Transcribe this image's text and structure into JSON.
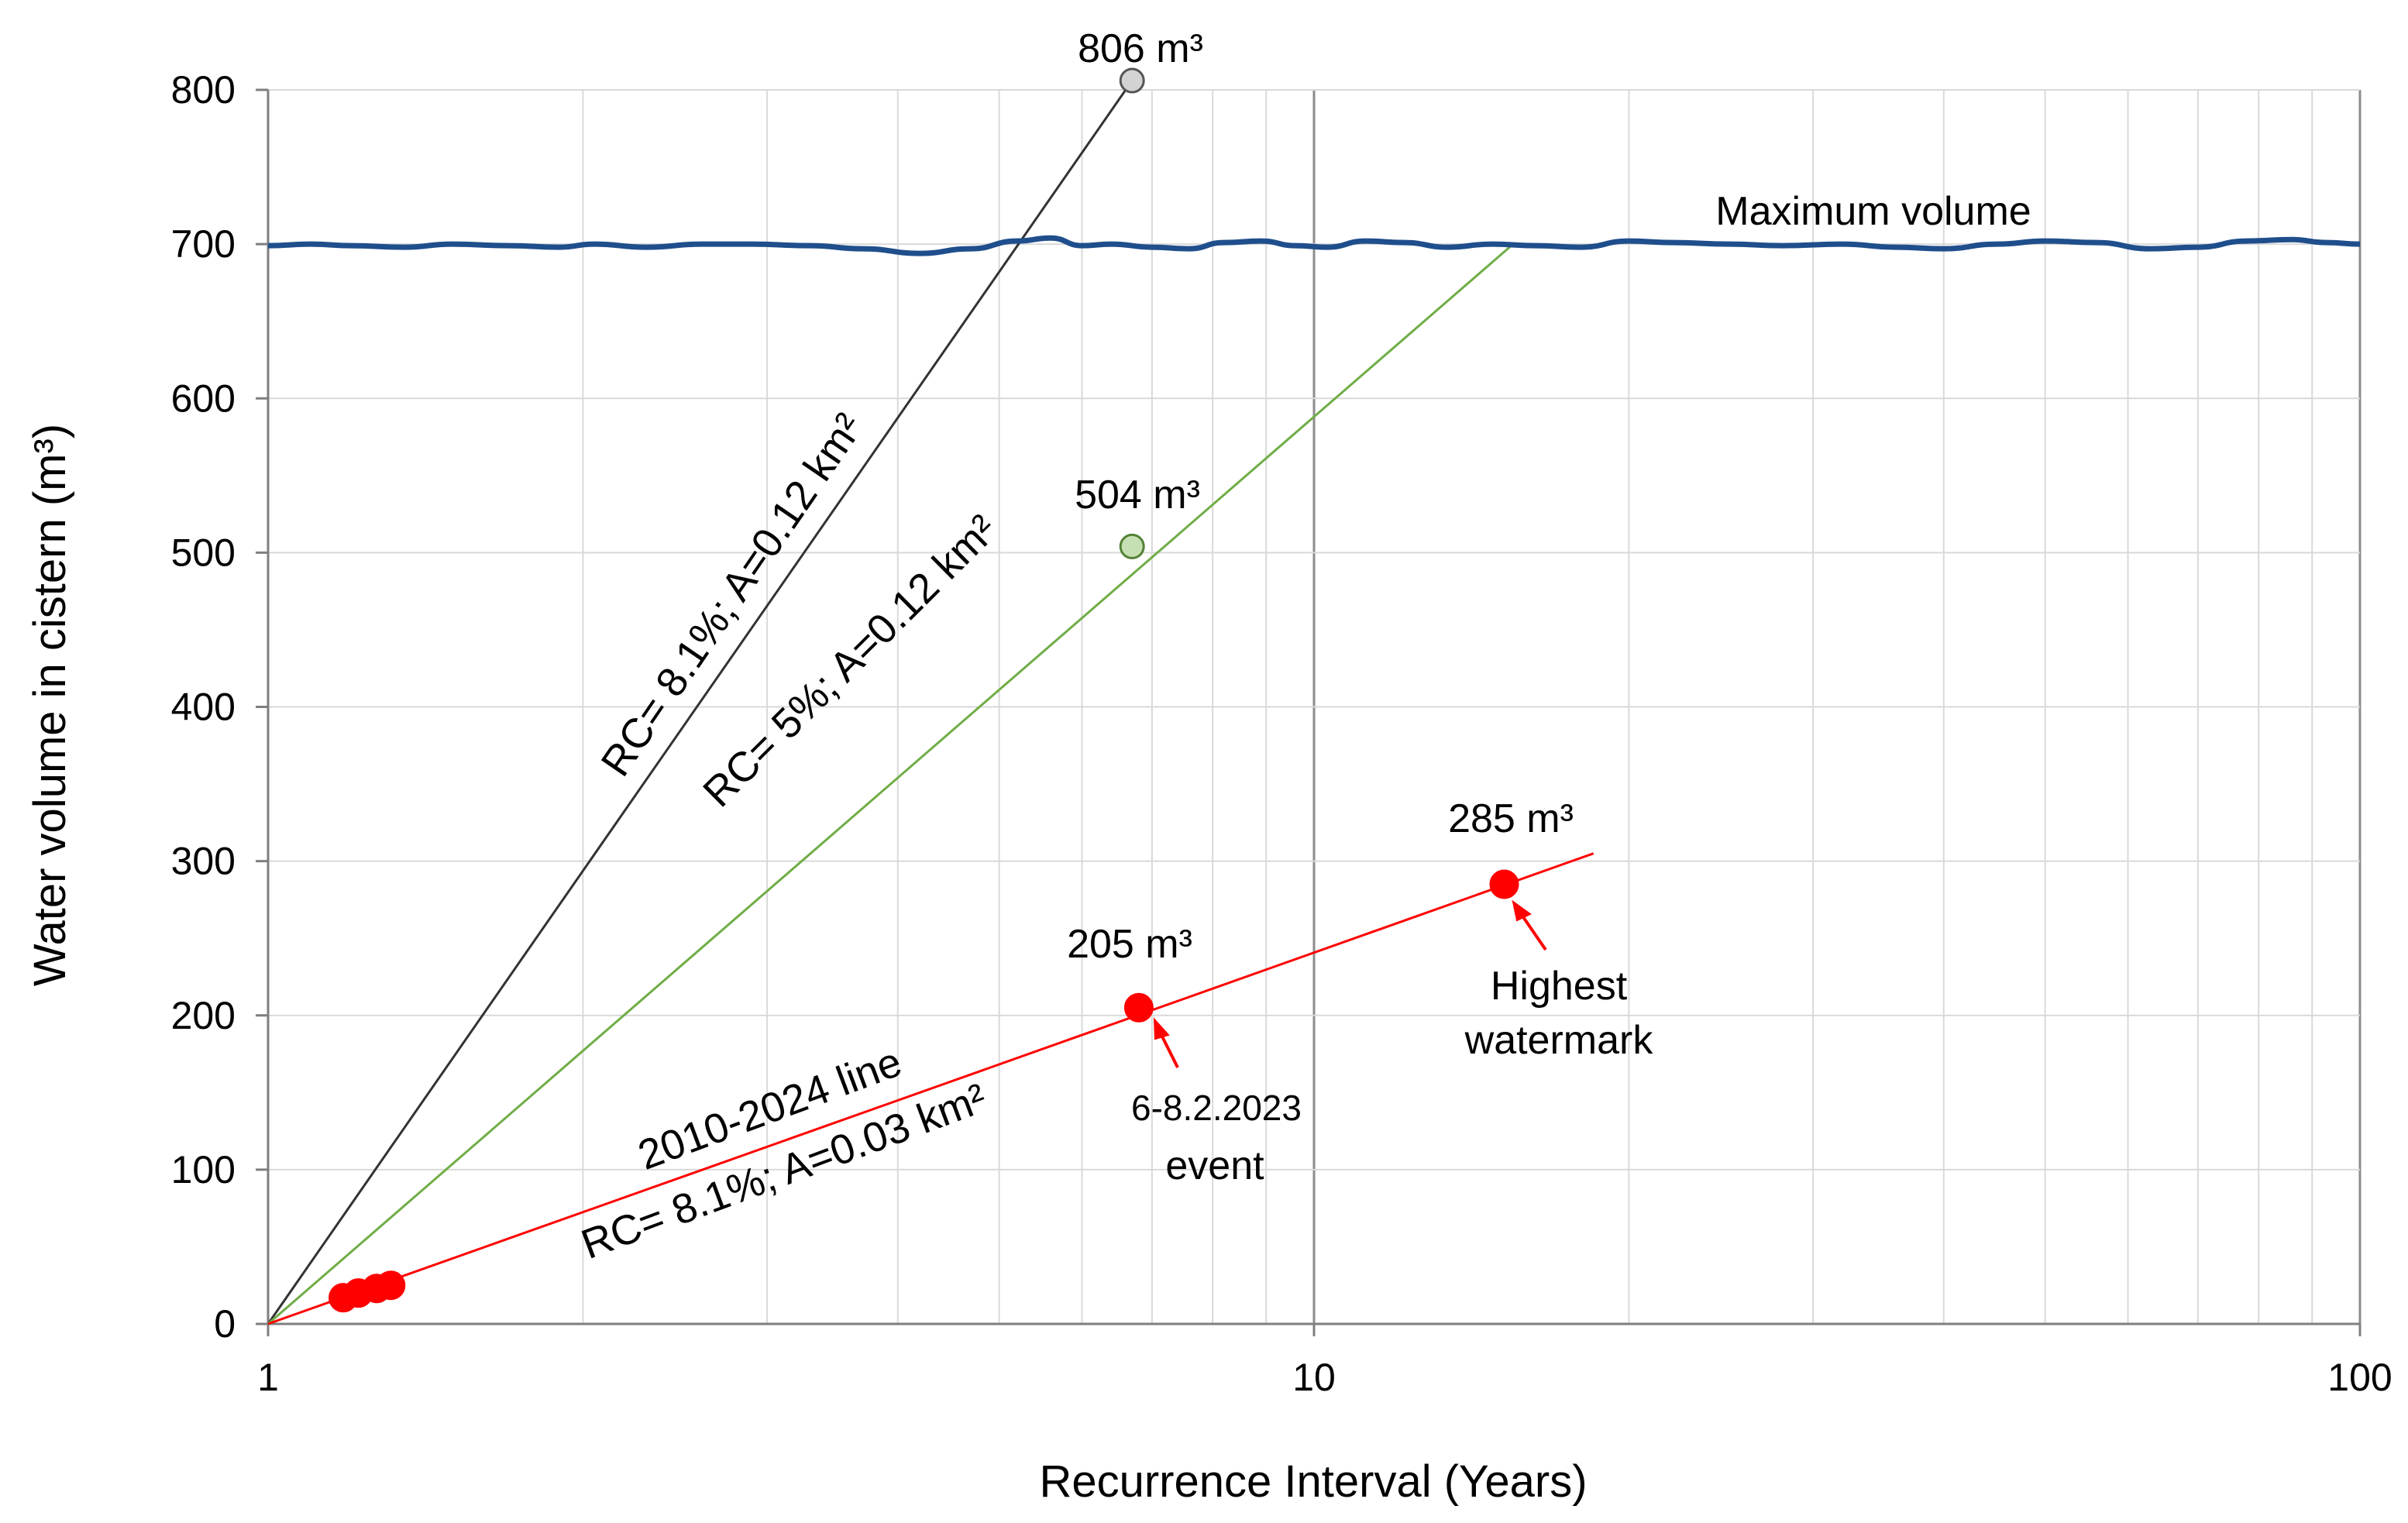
{
  "chart_data": {
    "type": "scatter",
    "title": "",
    "xlabel": "Recurrence Interval (Years)",
    "ylabel": "Water volume in cistern (m³)",
    "xscale": "log",
    "xlim": [
      1,
      100
    ],
    "ylim": [
      0,
      800
    ],
    "xticks": [
      1,
      10,
      100
    ],
    "xtick_labels": [
      "1",
      "10",
      "100"
    ],
    "yticks": [
      0,
      100,
      200,
      300,
      400,
      500,
      600,
      700,
      800
    ],
    "ytick_labels": [
      "0",
      "100",
      "200",
      "300",
      "400",
      "500",
      "600",
      "700",
      "800"
    ],
    "grid": true,
    "max_volume": {
      "label": "Maximum volume",
      "color": "#1f4e8c",
      "x": [
        1,
        1.1,
        1.2,
        1.35,
        1.5,
        1.7,
        1.9,
        2.05,
        2.3,
        2.6,
        2.9,
        3.3,
        3.7,
        4.2,
        4.7,
        5.2,
        5.6,
        6,
        6.4,
        7,
        7.6,
        8.2,
        8.9,
        9.6,
        10.3,
        11.2,
        12.2,
        13.4,
        14.8,
        16.3,
        18,
        20,
        22,
        25,
        28,
        32,
        36,
        40,
        45,
        50,
        56,
        63,
        70,
        78,
        86,
        93,
        100
      ],
      "y": [
        699,
        700,
        699,
        698,
        700,
        699,
        698,
        700,
        698,
        700,
        700,
        699,
        697,
        694,
        697,
        702,
        704,
        699,
        700,
        698,
        697,
        701,
        702,
        699,
        698,
        702,
        701,
        698,
        700,
        699,
        698,
        702,
        701,
        700,
        699,
        700,
        698,
        697,
        700,
        702,
        701,
        697,
        698,
        702,
        703,
        701,
        700
      ]
    },
    "series": [
      {
        "name": "RC= 8.1%; A=0.12 km²",
        "color": "#333333",
        "line": {
          "x": [
            1,
            6.7
          ],
          "y": [
            0,
            806
          ]
        },
        "points": [
          {
            "x": 6.7,
            "y": 806,
            "label": "806 m³",
            "fill": "#d3d3d3",
            "stroke": "#555555"
          }
        ]
      },
      {
        "name": "RC= 5%; A=0.12 km²",
        "color": "#70ad47",
        "line": {
          "x": [
            1,
            15.5
          ],
          "y": [
            0,
            700
          ]
        },
        "points": [
          {
            "x": 6.7,
            "y": 504,
            "label": "504 m³",
            "fill": "#c6e0b4",
            "stroke": "#548235"
          }
        ]
      },
      {
        "name": "2010-2024 line",
        "name2": "RC= 8.1%; A=0.03 km²",
        "color": "#ff0000",
        "line": {
          "x": [
            1,
            18.5
          ],
          "y": [
            0,
            305
          ]
        },
        "points": [
          {
            "x": 1.18,
            "y": 17
          },
          {
            "x": 1.22,
            "y": 20
          },
          {
            "x": 1.27,
            "y": 23
          },
          {
            "x": 1.31,
            "y": 25
          },
          {
            "x": 6.8,
            "y": 205,
            "label": "205 m³"
          },
          {
            "x": 15.2,
            "y": 285,
            "label": "285 m³"
          }
        ]
      }
    ],
    "annotations": {
      "event_line1": "6-8.2.2023",
      "event_line2": "event",
      "highest_line1": "Highest",
      "highest_line2": "watermark"
    }
  }
}
